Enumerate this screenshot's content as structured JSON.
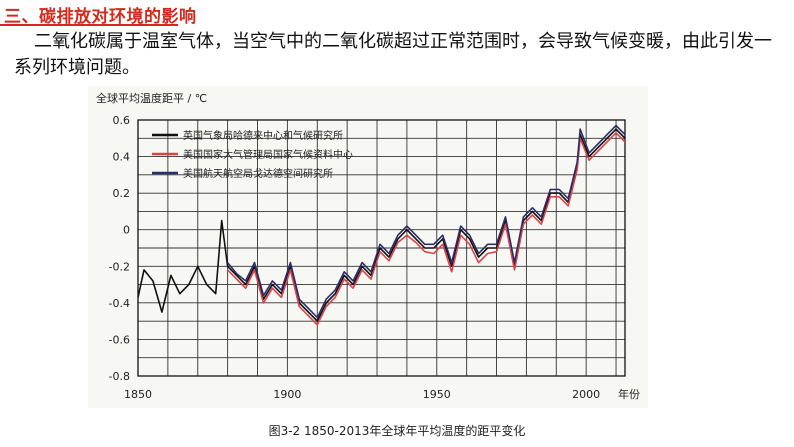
{
  "heading": "三、碳排放对环境的影响",
  "paragraph": "二氧化碳属于温室气体，当空气中的二氧化碳超过正常范围时，会导致气候变暖，由此引发一系列环境问题。",
  "caption": "图3-2   1850-2013年全球年平均温度的距平变化",
  "colors": {
    "accent": "#d42a1e",
    "series_black": "#111111",
    "series_red": "#d9434a",
    "series_navy": "#2a2e6a"
  },
  "chart_data": {
    "type": "line",
    "ylabel": "全球平均温度距平 / ℃",
    "xlabel": "年份",
    "xlim": [
      1850,
      2013
    ],
    "ylim": [
      -0.8,
      0.6
    ],
    "x_ticks": [
      "1850",
      "1900",
      "1950",
      "2000"
    ],
    "y_ticks": [
      "0.6",
      "0.4",
      "0.2",
      "0",
      "-0.2",
      "-0.4",
      "-0.6",
      "-0.8"
    ],
    "grid": true,
    "legend_position": "top-left",
    "series": [
      {
        "name": "英国气象局哈德来中心和气候研究所",
        "color": "#111111",
        "x": [
          1850,
          1852,
          1855,
          1858,
          1861,
          1864,
          1867,
          1870,
          1873,
          1876,
          1878,
          1880,
          1883,
          1886,
          1889,
          1892,
          1895,
          1898,
          1901,
          1904,
          1907,
          1910,
          1913,
          1916,
          1919,
          1922,
          1925,
          1928,
          1931,
          1934,
          1937,
          1940,
          1943,
          1946,
          1949,
          1952,
          1955,
          1958,
          1961,
          1964,
          1967,
          1970,
          1973,
          1976,
          1979,
          1982,
          1985,
          1988,
          1991,
          1994,
          1997,
          1998,
          2001,
          2004,
          2007,
          2010,
          2013
        ],
        "values": [
          -0.37,
          -0.22,
          -0.28,
          -0.45,
          -0.25,
          -0.35,
          -0.3,
          -0.2,
          -0.3,
          -0.35,
          0.05,
          -0.2,
          -0.25,
          -0.3,
          -0.2,
          -0.38,
          -0.3,
          -0.35,
          -0.2,
          -0.4,
          -0.45,
          -0.5,
          -0.4,
          -0.35,
          -0.25,
          -0.3,
          -0.2,
          -0.25,
          -0.1,
          -0.15,
          -0.05,
          0.0,
          -0.05,
          -0.1,
          -0.1,
          -0.05,
          -0.2,
          0.0,
          -0.05,
          -0.15,
          -0.1,
          -0.1,
          0.05,
          -0.2,
          0.05,
          0.1,
          0.05,
          0.2,
          0.2,
          0.15,
          0.35,
          0.52,
          0.4,
          0.45,
          0.5,
          0.55,
          0.5
        ]
      },
      {
        "name": "美国国家大气管理局国家气候资料中心",
        "color": "#d9434a",
        "x": [
          1880,
          1883,
          1886,
          1889,
          1892,
          1895,
          1898,
          1901,
          1904,
          1907,
          1910,
          1913,
          1916,
          1919,
          1922,
          1925,
          1928,
          1931,
          1934,
          1937,
          1940,
          1943,
          1946,
          1949,
          1952,
          1955,
          1958,
          1961,
          1964,
          1967,
          1970,
          1973,
          1976,
          1979,
          1982,
          1985,
          1988,
          1991,
          1994,
          1997,
          1998,
          2001,
          2004,
          2007,
          2010,
          2013
        ],
        "values": [
          -0.22,
          -0.27,
          -0.32,
          -0.22,
          -0.4,
          -0.32,
          -0.37,
          -0.22,
          -0.42,
          -0.47,
          -0.52,
          -0.42,
          -0.37,
          -0.27,
          -0.32,
          -0.22,
          -0.27,
          -0.12,
          -0.17,
          -0.07,
          -0.03,
          -0.07,
          -0.12,
          -0.13,
          -0.08,
          -0.23,
          -0.03,
          -0.08,
          -0.18,
          -0.13,
          -0.12,
          0.03,
          -0.22,
          0.03,
          0.08,
          0.03,
          0.18,
          0.18,
          0.13,
          0.33,
          0.5,
          0.38,
          0.43,
          0.48,
          0.53,
          0.48
        ]
      },
      {
        "name": "美国航天航空局戈达德空间研究所",
        "color": "#2a2e6a",
        "x": [
          1880,
          1883,
          1886,
          1889,
          1892,
          1895,
          1898,
          1901,
          1904,
          1907,
          1910,
          1913,
          1916,
          1919,
          1922,
          1925,
          1928,
          1931,
          1934,
          1937,
          1940,
          1943,
          1946,
          1949,
          1952,
          1955,
          1958,
          1961,
          1964,
          1967,
          1970,
          1973,
          1976,
          1979,
          1982,
          1985,
          1988,
          1991,
          1994,
          1997,
          1998,
          2001,
          2004,
          2007,
          2010,
          2013
        ],
        "values": [
          -0.18,
          -0.24,
          -0.28,
          -0.18,
          -0.36,
          -0.28,
          -0.33,
          -0.18,
          -0.38,
          -0.43,
          -0.48,
          -0.38,
          -0.33,
          -0.23,
          -0.28,
          -0.18,
          -0.23,
          -0.08,
          -0.13,
          -0.03,
          0.02,
          -0.03,
          -0.08,
          -0.08,
          -0.03,
          -0.18,
          0.02,
          -0.03,
          -0.13,
          -0.08,
          -0.08,
          0.07,
          -0.18,
          0.07,
          0.12,
          0.07,
          0.22,
          0.22,
          0.17,
          0.37,
          0.55,
          0.42,
          0.47,
          0.52,
          0.57,
          0.52
        ]
      }
    ]
  }
}
